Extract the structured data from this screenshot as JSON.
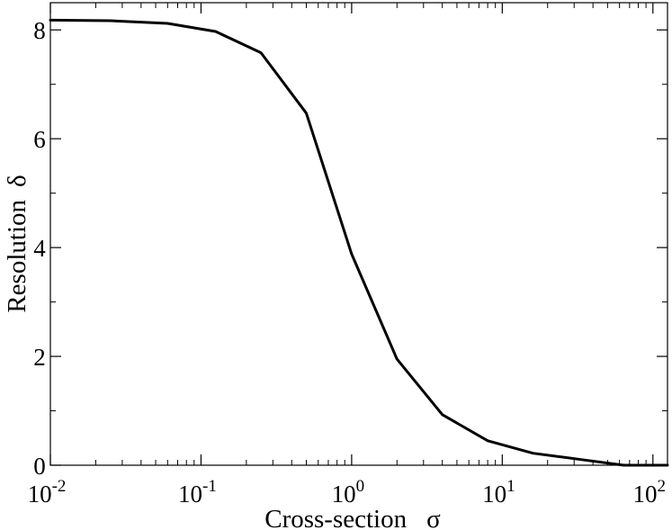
{
  "chart_data": {
    "type": "line",
    "title": "",
    "xlabel": "Cross-section",
    "xlabel_symbol": "σ",
    "ylabel": "Resolution",
    "ylabel_symbol": "δ",
    "xscale": "log",
    "xlim": [
      0.01,
      125
    ],
    "ylim": [
      0,
      8.5
    ],
    "grid": false,
    "legend": "none",
    "line_color": "#000000",
    "x_ticks": [
      {
        "value": 0.01,
        "base": "10",
        "exp": "-2"
      },
      {
        "value": 0.1,
        "base": "10",
        "exp": "-1"
      },
      {
        "value": 1,
        "base": "10",
        "exp": "0"
      },
      {
        "value": 10,
        "base": "10",
        "exp": "1"
      },
      {
        "value": 100,
        "base": "10",
        "exp": "2"
      }
    ],
    "y_ticks": [
      {
        "value": 0,
        "label": "0"
      },
      {
        "value": 2,
        "label": "2"
      },
      {
        "value": 4,
        "label": "4"
      },
      {
        "value": 6,
        "label": "6"
      },
      {
        "value": 8,
        "label": "8"
      }
    ],
    "y_minor_ticks": [
      1,
      3,
      5,
      7
    ],
    "series": [
      {
        "x": [
          0.01,
          0.025,
          0.06,
          0.125,
          0.25,
          0.5,
          1,
          2,
          4,
          8,
          16,
          32,
          64,
          125
        ],
        "y": [
          8.18,
          8.17,
          8.12,
          7.97,
          7.58,
          6.47,
          3.88,
          1.95,
          0.93,
          0.45,
          0.22,
          0.11,
          0.0,
          0.0
        ]
      }
    ]
  }
}
